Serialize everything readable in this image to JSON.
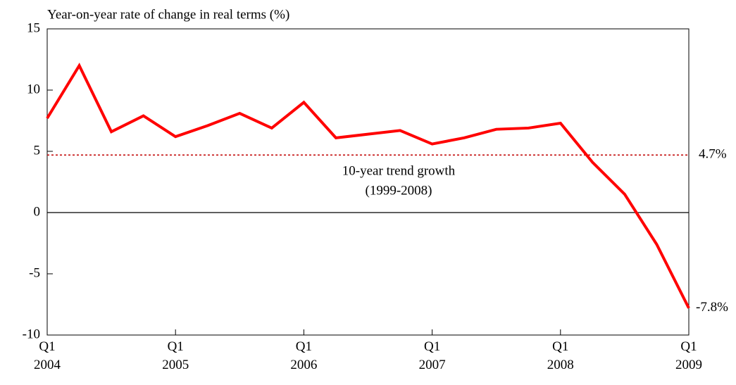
{
  "chart_data": {
    "type": "line",
    "title": "Year-on-year rate of change in real terms (%)",
    "categories": [
      "Q1 2004",
      null,
      null,
      null,
      "Q1 2005",
      null,
      null,
      null,
      "Q1 2006",
      null,
      null,
      null,
      "Q1 2007",
      null,
      null,
      null,
      "Q1 2008",
      null,
      null,
      null,
      "Q1 2009"
    ],
    "series": [
      {
        "color": "#ff0000",
        "values": [
          7.7,
          12.0,
          6.6,
          7.9,
          6.2,
          7.1,
          8.1,
          6.9,
          9.0,
          6.1,
          6.4,
          6.7,
          5.6,
          6.1,
          6.8,
          6.9,
          7.3,
          4.1,
          1.5,
          -2.6,
          -7.8
        ],
        "value_labels": [
          null,
          null,
          null,
          null,
          null,
          null,
          null,
          null,
          null,
          null,
          null,
          null,
          null,
          null,
          null,
          null,
          null,
          null,
          null,
          null,
          "-7.8%"
        ]
      }
    ],
    "trend": {
      "value": 4.7,
      "label": "4.7%",
      "color": "#c00000",
      "text": "10-year  trend growth",
      "period": "(1999-2008)"
    },
    "ylim": [
      -10,
      15
    ],
    "yticks": [
      15,
      10,
      5,
      0,
      -5,
      -10
    ]
  }
}
